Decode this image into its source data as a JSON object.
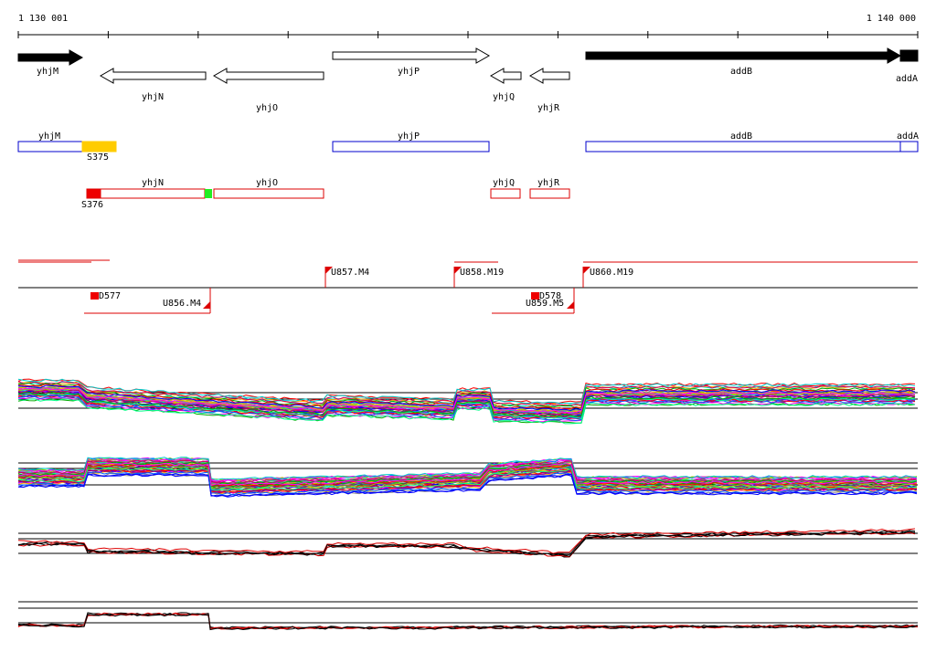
{
  "ruler": {
    "start": "1 130 001",
    "end": "1 140 000"
  },
  "genes": [
    "yhjM",
    "yhjN",
    "yhjO",
    "yhjP",
    "yhjQ",
    "yhjR",
    "addB",
    "addA"
  ],
  "annotations": [
    "yhjM",
    "S375",
    "yhjP",
    "addB",
    "addA"
  ],
  "operons": [
    "S376",
    "yhjN",
    "yhjO",
    "yhjQ",
    "yhjR"
  ],
  "transcripts": [
    "U857.M4",
    "U858.M19",
    "U860.M19",
    "D577",
    "U856.M4",
    "D578",
    "U859.M5"
  ]
}
